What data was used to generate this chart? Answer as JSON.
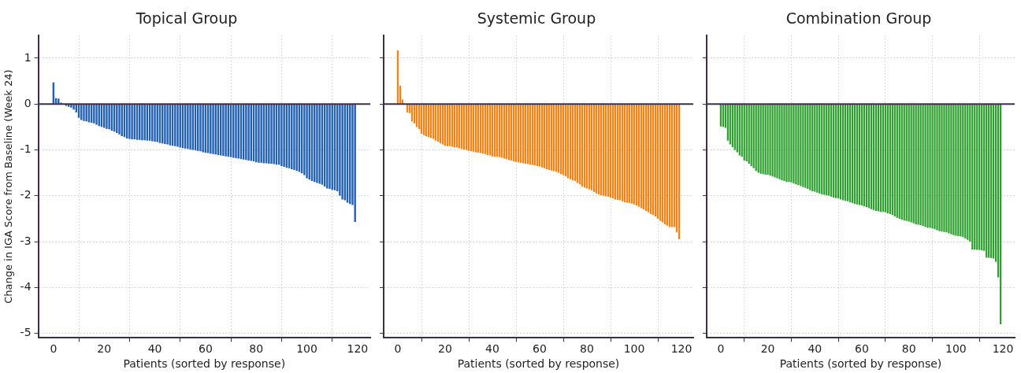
{
  "chart_data": [
    {
      "type": "bar",
      "title": "Topical Group",
      "xlabel": "Patients (sorted by response)",
      "ylabel": "Change in IGA Score from Baseline (Week 24)",
      "x": [
        0,
        1,
        2,
        3,
        4,
        5,
        6,
        7,
        8,
        9,
        10,
        11,
        12,
        13,
        14,
        15,
        16,
        17,
        18,
        19,
        20,
        21,
        22,
        23,
        24,
        25,
        26,
        27,
        28,
        29,
        30,
        31,
        32,
        33,
        34,
        35,
        36,
        37,
        38,
        39,
        40,
        41,
        42,
        43,
        44,
        45,
        46,
        47,
        48,
        49,
        50,
        51,
        52,
        53,
        54,
        55,
        56,
        57,
        58,
        59,
        60,
        61,
        62,
        63,
        64,
        65,
        66,
        67,
        68,
        69,
        70,
        71,
        72,
        73,
        74,
        75,
        76,
        77,
        78,
        79,
        80,
        81,
        82,
        83,
        84,
        85,
        86,
        87,
        88,
        89,
        90,
        91,
        92,
        93,
        94,
        95,
        96,
        97,
        98,
        99,
        100,
        101,
        102,
        103,
        104,
        105,
        106,
        107,
        108,
        109,
        110,
        111,
        112,
        113,
        114,
        115,
        116,
        117,
        118,
        119
      ],
      "values": [
        0.47,
        0.13,
        0.12,
        0.03,
        null,
        -0.04,
        -0.06,
        -0.08,
        -0.12,
        -0.18,
        -0.3,
        -0.35,
        -0.37,
        -0.38,
        -0.4,
        -0.41,
        -0.42,
        -0.45,
        -0.48,
        -0.5,
        -0.52,
        -0.54,
        -0.55,
        -0.58,
        -0.6,
        -0.63,
        -0.66,
        -0.7,
        -0.72,
        -0.75,
        -0.76,
        -0.77,
        -0.77,
        -0.78,
        -0.78,
        -0.79,
        -0.79,
        -0.8,
        -0.8,
        -0.81,
        -0.82,
        -0.83,
        -0.85,
        -0.86,
        -0.87,
        -0.88,
        -0.9,
        -0.91,
        -0.92,
        -0.93,
        -0.95,
        -0.96,
        -0.97,
        -0.98,
        -0.99,
        -1.0,
        -1.01,
        -1.02,
        -1.03,
        -1.05,
        -1.06,
        -1.07,
        -1.08,
        -1.09,
        -1.1,
        -1.11,
        -1.12,
        -1.13,
        -1.14,
        -1.15,
        -1.16,
        -1.17,
        -1.18,
        -1.19,
        -1.2,
        -1.21,
        -1.22,
        -1.23,
        -1.24,
        -1.25,
        -1.27,
        -1.28,
        -1.28,
        -1.29,
        -1.29,
        -1.3,
        -1.3,
        -1.31,
        -1.32,
        -1.32,
        -1.35,
        -1.37,
        -1.39,
        -1.4,
        -1.42,
        -1.44,
        -1.46,
        -1.48,
        -1.51,
        -1.55,
        -1.62,
        -1.65,
        -1.68,
        -1.7,
        -1.72,
        -1.74,
        -1.76,
        -1.8,
        -1.84,
        -1.85,
        -1.87,
        -1.88,
        -1.9,
        -2.0,
        -2.08,
        -2.1,
        -2.15,
        -2.18,
        -2.2,
        -2.57
      ],
      "color": "#2160b5",
      "xlim": [
        -6,
        125
      ],
      "xticks": [
        0,
        20,
        40,
        60,
        80,
        100,
        120
      ],
      "ylim": [
        -5.1,
        1.5
      ],
      "yticks": [
        -5,
        -4,
        -3,
        -2,
        -1,
        0,
        1
      ],
      "grid": true,
      "ref_lines": [
        {
          "axis": "y",
          "value": 0,
          "color": "#3a2f45"
        }
      ]
    },
    {
      "type": "bar",
      "title": "Systemic Group",
      "xlabel": "Patients (sorted by response)",
      "x": [
        0,
        1,
        2,
        3,
        4,
        5,
        6,
        7,
        8,
        9,
        10,
        11,
        12,
        13,
        14,
        15,
        16,
        17,
        18,
        19,
        20,
        21,
        22,
        23,
        24,
        25,
        26,
        27,
        28,
        29,
        30,
        31,
        32,
        33,
        34,
        35,
        36,
        37,
        38,
        39,
        40,
        41,
        42,
        43,
        44,
        45,
        46,
        47,
        48,
        49,
        50,
        51,
        52,
        53,
        54,
        55,
        56,
        57,
        58,
        59,
        60,
        61,
        62,
        63,
        64,
        65,
        66,
        67,
        68,
        69,
        70,
        71,
        72,
        73,
        74,
        75,
        76,
        77,
        78,
        79,
        80,
        81,
        82,
        83,
        84,
        85,
        86,
        87,
        88,
        89,
        90,
        91,
        92,
        93,
        94,
        95,
        96,
        97,
        98,
        99,
        100,
        101,
        102,
        103,
        104,
        105,
        106,
        107,
        108,
        109,
        110,
        111,
        112,
        113,
        114,
        115,
        116,
        117,
        118,
        119
      ],
      "values": [
        1.17,
        0.4,
        0.1,
        null,
        -0.18,
        -0.2,
        -0.38,
        -0.42,
        -0.5,
        -0.55,
        -0.65,
        -0.68,
        -0.7,
        -0.72,
        -0.74,
        -0.76,
        -0.8,
        -0.82,
        -0.86,
        -0.88,
        -0.91,
        -0.92,
        -0.92,
        -0.93,
        -0.94,
        -0.95,
        -0.96,
        -0.98,
        -0.99,
        -1.0,
        -1.02,
        -1.03,
        -1.04,
        -1.05,
        -1.06,
        -1.07,
        -1.08,
        -1.09,
        -1.11,
        -1.12,
        -1.14,
        -1.15,
        -1.15,
        -1.16,
        -1.17,
        -1.19,
        -1.2,
        -1.22,
        -1.23,
        -1.25,
        -1.26,
        -1.27,
        -1.28,
        -1.29,
        -1.3,
        -1.31,
        -1.32,
        -1.33,
        -1.34,
        -1.35,
        -1.36,
        -1.38,
        -1.4,
        -1.42,
        -1.44,
        -1.45,
        -1.46,
        -1.48,
        -1.5,
        -1.53,
        -1.55,
        -1.58,
        -1.62,
        -1.64,
        -1.66,
        -1.68,
        -1.72,
        -1.75,
        -1.8,
        -1.82,
        -1.84,
        -1.86,
        -1.88,
        -1.92,
        -1.95,
        -1.97,
        -1.99,
        -2.0,
        -2.01,
        -2.02,
        -2.04,
        -2.06,
        -2.08,
        -2.09,
        -2.1,
        -2.12,
        -2.14,
        -2.15,
        -2.16,
        -2.17,
        -2.19,
        -2.21,
        -2.24,
        -2.27,
        -2.3,
        -2.33,
        -2.36,
        -2.4,
        -2.42,
        -2.45,
        -2.5,
        -2.55,
        -2.58,
        -2.62,
        -2.65,
        -2.68,
        -2.68,
        -2.68,
        -2.8,
        -2.95
      ],
      "color": "#ff7f0e",
      "xlim": [
        -6,
        125
      ],
      "xticks": [
        0,
        20,
        40,
        60,
        80,
        100,
        120
      ],
      "ylim": [
        -5.1,
        1.5
      ],
      "yticks": [
        -5,
        -4,
        -3,
        -2,
        -1,
        0,
        1
      ],
      "grid": true,
      "tick_labels": "x",
      "ref_lines": [
        {
          "axis": "y",
          "value": 0,
          "color": "#3a2f45"
        }
      ]
    },
    {
      "type": "bar",
      "title": "Combination Group",
      "xlabel": "Patients (sorted by response)",
      "x": [
        0,
        1,
        2,
        3,
        4,
        5,
        6,
        7,
        8,
        9,
        10,
        11,
        12,
        13,
        14,
        15,
        16,
        17,
        18,
        19,
        20,
        21,
        22,
        23,
        24,
        25,
        26,
        27,
        28,
        29,
        30,
        31,
        32,
        33,
        34,
        35,
        36,
        37,
        38,
        39,
        40,
        41,
        42,
        43,
        44,
        45,
        46,
        47,
        48,
        49,
        50,
        51,
        52,
        53,
        54,
        55,
        56,
        57,
        58,
        59,
        60,
        61,
        62,
        63,
        64,
        65,
        66,
        67,
        68,
        69,
        70,
        71,
        72,
        73,
        74,
        75,
        76,
        77,
        78,
        79,
        80,
        81,
        82,
        83,
        84,
        85,
        86,
        87,
        88,
        89,
        90,
        91,
        92,
        93,
        94,
        95,
        96,
        97,
        98,
        99,
        100,
        101,
        102,
        103,
        104,
        105,
        106,
        107,
        108,
        109,
        110,
        111,
        112,
        113,
        114,
        115,
        116,
        117,
        118,
        119
      ],
      "values": [
        -0.49,
        -0.5,
        -0.52,
        -0.8,
        -0.88,
        -0.94,
        -1.0,
        -1.05,
        -1.12,
        -1.15,
        -1.23,
        -1.25,
        -1.3,
        -1.35,
        -1.4,
        -1.46,
        -1.5,
        -1.52,
        -1.53,
        -1.54,
        -1.54,
        -1.56,
        -1.58,
        -1.6,
        -1.62,
        -1.64,
        -1.66,
        -1.68,
        -1.7,
        -1.7,
        -1.71,
        -1.73,
        -1.75,
        -1.77,
        -1.79,
        -1.81,
        -1.83,
        -1.85,
        -1.88,
        -1.9,
        -1.91,
        -1.93,
        -1.95,
        -1.97,
        -1.98,
        -1.99,
        -2.0,
        -2.02,
        -2.04,
        -2.05,
        -2.06,
        -2.08,
        -2.1,
        -2.11,
        -2.12,
        -2.14,
        -2.16,
        -2.18,
        -2.19,
        -2.2,
        -2.21,
        -2.23,
        -2.25,
        -2.27,
        -2.29,
        -2.31,
        -2.33,
        -2.34,
        -2.35,
        -2.35,
        -2.36,
        -2.38,
        -2.4,
        -2.42,
        -2.45,
        -2.48,
        -2.5,
        -2.52,
        -2.54,
        -2.55,
        -2.56,
        -2.58,
        -2.6,
        -2.62,
        -2.63,
        -2.64,
        -2.66,
        -2.68,
        -2.7,
        -2.7,
        -2.71,
        -2.73,
        -2.75,
        -2.77,
        -2.78,
        -2.79,
        -2.8,
        -2.82,
        -2.84,
        -2.86,
        -2.87,
        -2.88,
        -2.89,
        -2.9,
        -2.93,
        -2.96,
        -3.0,
        -3.17,
        -3.17,
        -3.18,
        -3.18,
        -3.19,
        -3.2,
        -3.35,
        -3.35,
        -3.36,
        -3.37,
        -3.44,
        -3.78,
        -4.8
      ],
      "color": "#2ca02c",
      "xlim": [
        -6,
        125
      ],
      "xticks": [
        0,
        20,
        40,
        60,
        80,
        100,
        120
      ],
      "ylim": [
        -5.1,
        1.5
      ],
      "yticks": [
        -5,
        -4,
        -3,
        -2,
        -1,
        0,
        1
      ],
      "grid": true,
      "tick_labels": "x",
      "ref_lines": [
        {
          "axis": "y",
          "value": 0,
          "color": "#3a2f45"
        }
      ]
    }
  ]
}
